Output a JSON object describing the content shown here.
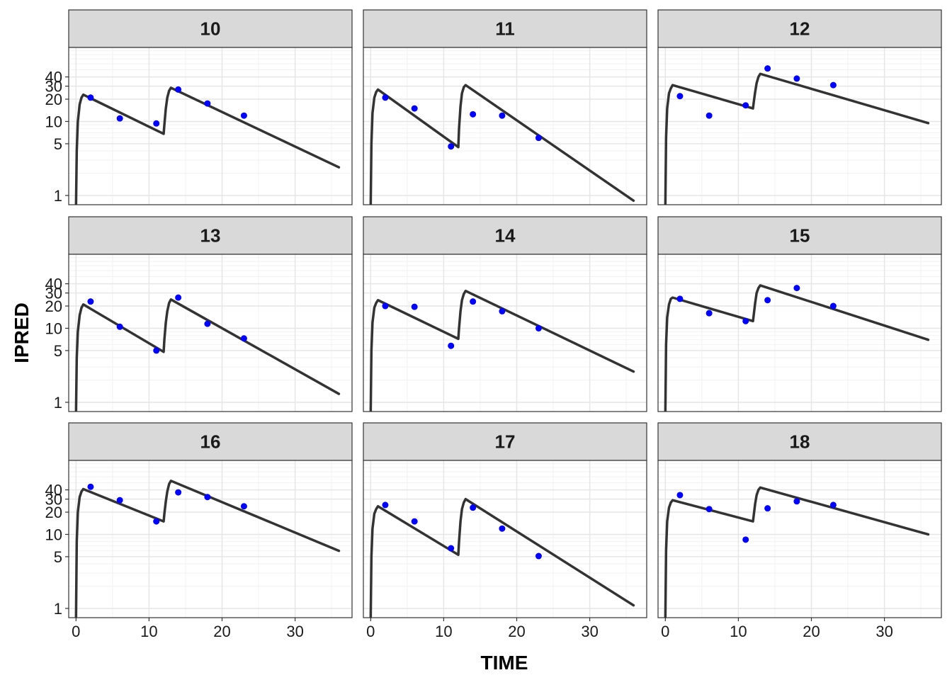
{
  "chart_data": {
    "type": "line",
    "title": "",
    "xlabel": "TIME",
    "ylabel": "IPRED",
    "y_scale": "log10",
    "xlim": [
      -1.0,
      37.8
    ],
    "ylim": [
      0.75,
      100
    ],
    "x_ticks": [
      0,
      10,
      20,
      30
    ],
    "x_tick_labels": [
      "0",
      "10",
      "20",
      "30"
    ],
    "y_ticks": [
      1,
      5,
      10,
      20,
      30,
      40
    ],
    "y_tick_labels": [
      "1",
      "5",
      "10",
      "20",
      "30",
      "40"
    ],
    "grid": true,
    "line_color": "#333333",
    "point_color": "#0000ff",
    "panels": [
      {
        "id": "10",
        "line": [
          [
            0,
            0.7
          ],
          [
            0.1,
            4
          ],
          [
            0.25,
            10
          ],
          [
            0.5,
            17
          ],
          [
            0.75,
            21
          ],
          [
            1,
            23
          ],
          [
            12,
            6.8
          ],
          [
            12.1,
            9
          ],
          [
            12.3,
            15
          ],
          [
            12.5,
            21
          ],
          [
            12.75,
            26
          ],
          [
            13,
            28.5
          ],
          [
            36,
            2.4
          ]
        ],
        "points": [
          [
            2,
            21
          ],
          [
            6,
            11
          ],
          [
            11,
            9.4
          ],
          [
            14,
            27
          ],
          [
            18,
            17.5
          ],
          [
            23,
            12
          ]
        ]
      },
      {
        "id": "11",
        "line": [
          [
            0,
            0.7
          ],
          [
            0.1,
            5
          ],
          [
            0.25,
            13
          ],
          [
            0.5,
            21
          ],
          [
            0.75,
            25
          ],
          [
            1,
            27
          ],
          [
            12,
            4.5
          ],
          [
            12.1,
            8
          ],
          [
            12.3,
            16
          ],
          [
            12.5,
            24
          ],
          [
            12.75,
            29
          ],
          [
            13,
            31
          ],
          [
            36,
            0.85
          ]
        ],
        "points": [
          [
            2,
            21
          ],
          [
            6,
            15
          ],
          [
            11,
            4.6
          ],
          [
            14,
            12.5
          ],
          [
            18,
            12
          ],
          [
            23,
            6
          ]
        ]
      },
      {
        "id": "12",
        "line": [
          [
            0,
            0.7
          ],
          [
            0.1,
            6
          ],
          [
            0.25,
            15
          ],
          [
            0.5,
            24
          ],
          [
            0.75,
            28
          ],
          [
            1,
            31
          ],
          [
            12,
            15
          ],
          [
            12.1,
            18
          ],
          [
            12.3,
            25
          ],
          [
            12.5,
            33
          ],
          [
            12.75,
            40
          ],
          [
            13,
            44
          ],
          [
            36,
            9.5
          ]
        ],
        "points": [
          [
            2,
            22
          ],
          [
            6,
            12
          ],
          [
            11,
            16.5
          ],
          [
            14,
            52
          ],
          [
            18,
            38
          ],
          [
            23,
            31
          ]
        ]
      },
      {
        "id": "13",
        "line": [
          [
            0,
            0.7
          ],
          [
            0.1,
            4
          ],
          [
            0.25,
            9
          ],
          [
            0.5,
            15
          ],
          [
            0.75,
            19
          ],
          [
            1,
            21
          ],
          [
            12,
            4.8
          ],
          [
            12.1,
            7
          ],
          [
            12.3,
            12
          ],
          [
            12.5,
            17
          ],
          [
            12.75,
            22
          ],
          [
            13,
            24.5
          ],
          [
            36,
            1.3
          ]
        ],
        "points": [
          [
            2,
            23
          ],
          [
            6,
            10.5
          ],
          [
            11,
            5
          ],
          [
            14,
            26
          ],
          [
            18,
            11.5
          ],
          [
            23,
            7.3
          ]
        ]
      },
      {
        "id": "14",
        "line": [
          [
            0,
            0.7
          ],
          [
            0.1,
            5
          ],
          [
            0.25,
            12
          ],
          [
            0.5,
            19
          ],
          [
            0.75,
            22
          ],
          [
            1,
            24
          ],
          [
            12,
            7.2
          ],
          [
            12.1,
            10
          ],
          [
            12.3,
            17
          ],
          [
            12.5,
            24
          ],
          [
            12.75,
            29
          ],
          [
            13,
            32
          ],
          [
            36,
            2.6
          ]
        ],
        "points": [
          [
            2,
            20
          ],
          [
            6,
            19.5
          ],
          [
            11,
            5.8
          ],
          [
            14,
            23
          ],
          [
            18,
            17
          ],
          [
            23,
            10
          ]
        ]
      },
      {
        "id": "15",
        "line": [
          [
            0,
            0.7
          ],
          [
            0.1,
            6
          ],
          [
            0.25,
            14
          ],
          [
            0.5,
            21
          ],
          [
            0.75,
            25
          ],
          [
            1,
            26
          ],
          [
            12,
            12.5
          ],
          [
            12.1,
            15
          ],
          [
            12.3,
            22
          ],
          [
            12.5,
            30
          ],
          [
            12.75,
            35
          ],
          [
            13,
            38
          ],
          [
            36,
            7
          ]
        ],
        "points": [
          [
            2,
            25
          ],
          [
            6,
            16
          ],
          [
            11,
            12.5
          ],
          [
            14,
            24
          ],
          [
            18,
            35
          ],
          [
            23,
            20
          ]
        ]
      },
      {
        "id": "16",
        "line": [
          [
            0,
            0.7
          ],
          [
            0.1,
            8
          ],
          [
            0.25,
            20
          ],
          [
            0.5,
            32
          ],
          [
            0.75,
            38
          ],
          [
            1,
            41
          ],
          [
            12,
            15
          ],
          [
            12.1,
            19
          ],
          [
            12.3,
            28
          ],
          [
            12.5,
            38
          ],
          [
            12.75,
            48
          ],
          [
            13,
            53
          ],
          [
            36,
            6
          ]
        ],
        "points": [
          [
            2,
            44
          ],
          [
            6,
            29
          ],
          [
            11,
            15
          ],
          [
            14,
            37
          ],
          [
            18,
            32
          ],
          [
            23,
            24
          ]
        ]
      },
      {
        "id": "17",
        "line": [
          [
            0,
            0.7
          ],
          [
            0.1,
            5
          ],
          [
            0.25,
            12
          ],
          [
            0.5,
            19
          ],
          [
            0.75,
            22
          ],
          [
            1,
            24
          ],
          [
            12,
            5.3
          ],
          [
            12.1,
            8
          ],
          [
            12.3,
            15
          ],
          [
            12.5,
            22
          ],
          [
            12.75,
            27
          ],
          [
            13,
            30
          ],
          [
            36,
            1.1
          ]
        ],
        "points": [
          [
            2,
            25
          ],
          [
            6,
            15
          ],
          [
            11,
            6.5
          ],
          [
            14,
            23
          ],
          [
            18,
            12
          ],
          [
            23,
            5.1
          ]
        ]
      },
      {
        "id": "18",
        "line": [
          [
            0,
            0.7
          ],
          [
            0.1,
            6
          ],
          [
            0.25,
            15
          ],
          [
            0.5,
            23
          ],
          [
            0.75,
            27
          ],
          [
            1,
            29
          ],
          [
            12,
            15
          ],
          [
            12.1,
            18
          ],
          [
            12.3,
            26
          ],
          [
            12.5,
            34
          ],
          [
            12.75,
            40
          ],
          [
            13,
            43
          ],
          [
            36,
            10
          ]
        ],
        "points": [
          [
            2,
            34
          ],
          [
            6,
            22
          ],
          [
            11,
            8.5
          ],
          [
            14,
            22.5
          ],
          [
            18,
            28
          ],
          [
            23,
            25
          ]
        ]
      }
    ]
  }
}
